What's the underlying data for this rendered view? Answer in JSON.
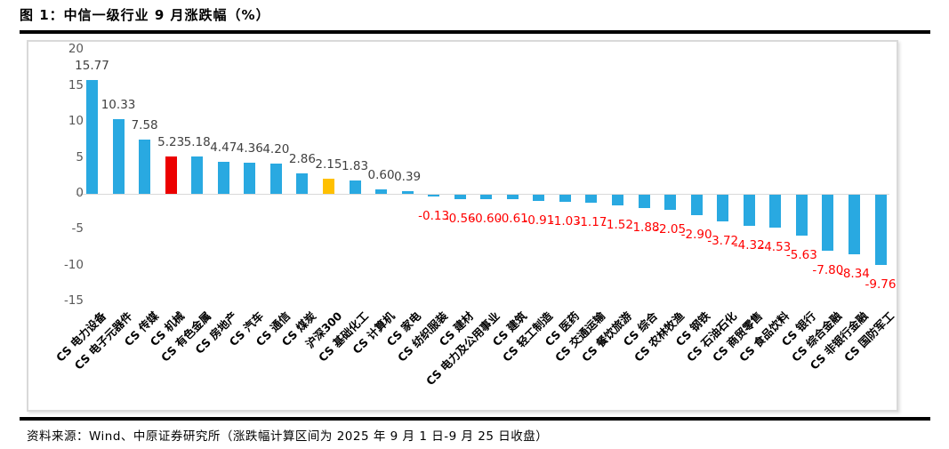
{
  "figure": {
    "title": "图 1：中信一级行业 9 月涨跌幅（%）",
    "source_note": "资料来源：Wind、中原证券研究所（涨跌幅计算区间为 2025 年 9 月 1 日-9 月 25 日收盘）"
  },
  "chart_data": {
    "type": "bar",
    "title": "中信一级行业 9 月涨跌幅（%）",
    "categories": [
      "CS 电力设备",
      "CS 电子元器件",
      "CS 传媒",
      "CS 机械",
      "CS 有色金属",
      "CS 房地产",
      "CS 汽车",
      "CS 通信",
      "CS 煤炭",
      "沪深300",
      "CS 基础化工",
      "CS 计算机",
      "CS 家电",
      "CS 纺织服装",
      "CS 建材",
      "CS 电力及公用事业",
      "CS 建筑",
      "CS 轻工制造",
      "CS 医药",
      "CS 交通运输",
      "CS 餐饮旅游",
      "CS 综合",
      "CS 农林牧渔",
      "CS 钢铁",
      "CS 石油石化",
      "CS 商贸零售",
      "CS 食品饮料",
      "CS 银行",
      "CS 综合金融",
      "CS 非银行金融",
      "CS 国防军工"
    ],
    "values": [
      15.77,
      10.33,
      7.58,
      5.23,
      5.18,
      4.47,
      4.36,
      4.2,
      2.86,
      2.15,
      1.83,
      0.6,
      0.39,
      -0.13,
      -0.56,
      -0.6,
      -0.61,
      -0.91,
      -1.03,
      -1.17,
      -1.52,
      -1.88,
      -2.05,
      -2.9,
      -3.72,
      -4.32,
      -4.53,
      -5.63,
      -7.8,
      -8.34,
      -9.76
    ],
    "value_label_format": "0.00",
    "yticks": [
      20,
      15,
      10,
      5,
      0,
      -5,
      -10,
      -15
    ],
    "ylim": [
      -15,
      20
    ],
    "grid": false,
    "legend": "none",
    "x_label_rotation_deg": 45,
    "highlights": [
      {
        "index": 3,
        "category": "CS 机械",
        "color": "#EC0000"
      },
      {
        "index": 9,
        "category": "沪深300",
        "color": "#FFC000"
      }
    ],
    "colors": {
      "bar_default": "#29A9E1",
      "value_label_positive": "#404040",
      "value_label_negative": "#FF0000",
      "axis_tick": "#595959",
      "baseline_line": "#D9D9D9",
      "chart_border": "#D9D9D9"
    }
  }
}
